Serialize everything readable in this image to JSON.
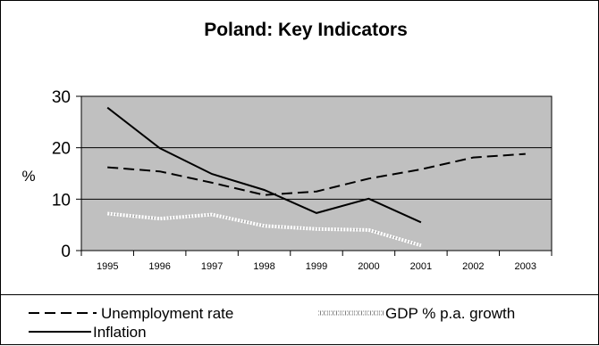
{
  "chart_data": {
    "type": "line",
    "title": "Poland: Key Indicators",
    "ylabel": "%",
    "xlabel": "",
    "x": [
      "1995",
      "1996",
      "1997",
      "1998",
      "1999",
      "2000",
      "2001",
      "2002",
      "2003"
    ],
    "ylim": [
      0,
      30
    ],
    "yticks": [
      "0",
      "10",
      "20",
      "30"
    ],
    "grid": true,
    "legend_position": "bottom",
    "plot_background": "#c0c0c0",
    "series": [
      {
        "name": "Unemployment rate",
        "style": "dashed",
        "color": "#000000",
        "values": [
          16.2,
          15.4,
          13.2,
          10.8,
          11.5,
          14.0,
          15.8,
          18.1,
          18.8
        ]
      },
      {
        "name": "GDP % p.a. growth",
        "style": "dotted-white",
        "color": "#ffffff",
        "values": [
          7.2,
          6.2,
          7.0,
          4.8,
          4.2,
          4.0,
          1.0,
          null,
          null
        ]
      },
      {
        "name": "Inflation",
        "style": "solid",
        "color": "#000000",
        "values": [
          27.8,
          19.9,
          14.9,
          11.8,
          7.3,
          10.1,
          5.5,
          null,
          null
        ]
      }
    ]
  }
}
